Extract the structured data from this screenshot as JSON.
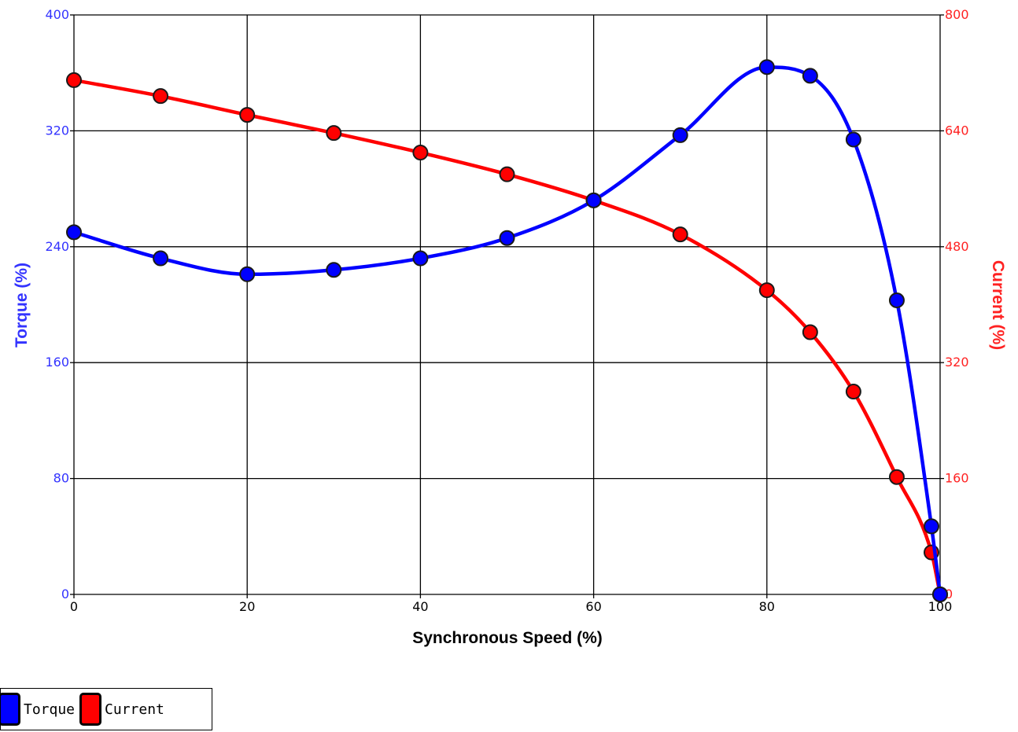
{
  "chart_data": {
    "type": "line",
    "xlabel": "Synchronous Speed (%)",
    "ylabel_left": "Torque (%)",
    "ylabel_right": "Current (%)",
    "xlim": [
      0,
      100
    ],
    "ylim_left": [
      0,
      400
    ],
    "ylim_right": [
      0,
      800
    ],
    "x_ticks": [
      "0",
      "20",
      "40",
      "60",
      "80",
      "100"
    ],
    "y_ticks_left": [
      "0",
      "80",
      "160",
      "240",
      "320",
      "400"
    ],
    "y_ticks_right": [
      "0",
      "160",
      "320",
      "480",
      "640",
      "800"
    ],
    "grid": true,
    "legend_position": "bottom-left",
    "series": [
      {
        "name": "Torque",
        "axis": "left",
        "color": "#0000ff",
        "x": [
          0,
          10,
          20,
          30,
          40,
          50,
          60,
          70,
          80,
          85,
          90,
          95,
          99,
          100
        ],
        "y": [
          250,
          232,
          221,
          224,
          232,
          246,
          272,
          317,
          364,
          358,
          314,
          203,
          47,
          0
        ]
      },
      {
        "name": "Current",
        "axis": "right",
        "color": "#ff0000",
        "x": [
          0,
          10,
          20,
          30,
          40,
          50,
          60,
          70,
          80,
          85,
          90,
          95,
          99,
          100
        ],
        "y": [
          710,
          688,
          662,
          637,
          610,
          580,
          544,
          497,
          420,
          362,
          280,
          162,
          58,
          0
        ]
      }
    ]
  },
  "legend": {
    "torque_label": "Torque",
    "current_label": "Current",
    "torque_color": "#0000ff",
    "current_color": "#ff0000"
  },
  "colors": {
    "left_axis": "#3333ff",
    "right_axis": "#ff2222",
    "grid": "#000000"
  }
}
